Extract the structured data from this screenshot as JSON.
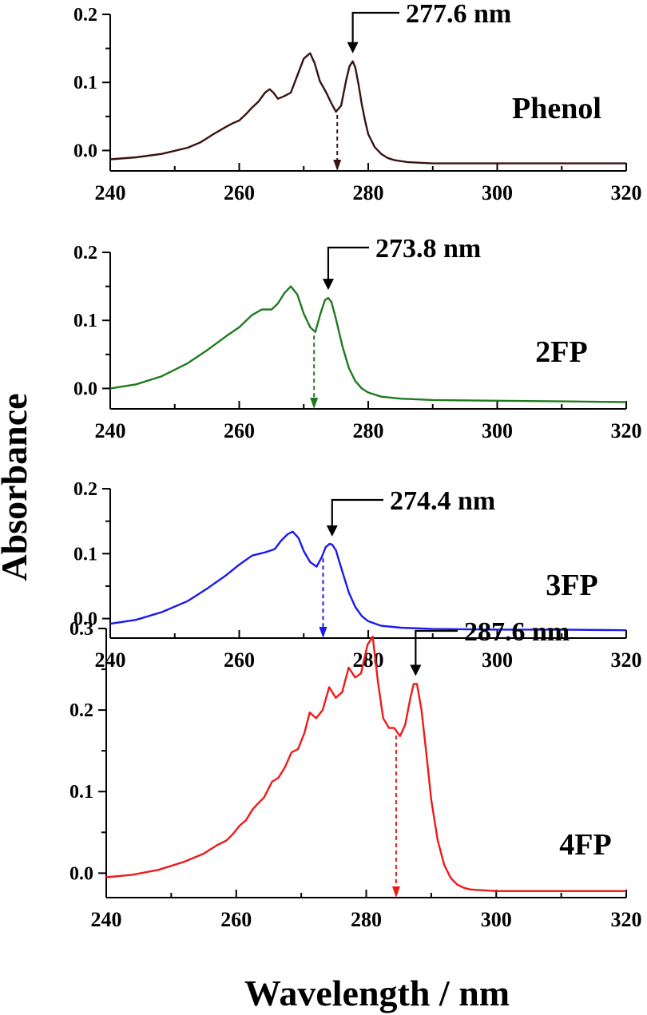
{
  "colors": {
    "phenol": "#3b1212",
    "2fp": "#1f7a1f",
    "3fp": "#1a1aee",
    "4fp": "#ee1a1a",
    "axes": "#000000"
  },
  "axis_titles": {
    "y": "Absorbance",
    "x": "Wavelength / nm"
  },
  "chart_data": [
    {
      "type": "line",
      "name": "Phenol",
      "label": "Phenol",
      "xlim": [
        240,
        320
      ],
      "ylim": [
        -0.03,
        0.2
      ],
      "xticks": [
        240,
        260,
        280,
        300,
        320
      ],
      "xtick_labels": [
        "240",
        "260",
        "280",
        "300",
        "320"
      ],
      "yticks": [
        0.0,
        0.1,
        0.2
      ],
      "ytick_labels": [
        "0.0",
        "0.1",
        "0.2"
      ],
      "grid": false,
      "color": "#3b1212",
      "peak_annotation": {
        "text": "277.6 nm",
        "x": 277.6
      },
      "dashed_marker_x": 275.2,
      "x": [
        240,
        244,
        248,
        252,
        254,
        256,
        258,
        259,
        260,
        261,
        262,
        263,
        264,
        264.7,
        265.3,
        266,
        267,
        268,
        269,
        270,
        271,
        271.7,
        272.5,
        273.5,
        274.3,
        275,
        275.8,
        276.6,
        277.1,
        277.6,
        278,
        278.5,
        279,
        279.5,
        280,
        281,
        282,
        283,
        284,
        286,
        288,
        290,
        300,
        310,
        320
      ],
      "y": [
        -0.013,
        -0.01,
        -0.005,
        0.004,
        0.012,
        0.024,
        0.035,
        0.04,
        0.044,
        0.053,
        0.063,
        0.072,
        0.085,
        0.09,
        0.085,
        0.076,
        0.08,
        0.085,
        0.11,
        0.135,
        0.143,
        0.128,
        0.102,
        0.085,
        0.069,
        0.057,
        0.066,
        0.104,
        0.124,
        0.131,
        0.122,
        0.097,
        0.068,
        0.044,
        0.024,
        0.005,
        -0.005,
        -0.011,
        -0.014,
        -0.017,
        -0.018,
        -0.019,
        -0.019,
        -0.019,
        -0.019
      ]
    },
    {
      "type": "line",
      "name": "2FP",
      "label": "2FP",
      "xlim": [
        240,
        320
      ],
      "ylim": [
        -0.03,
        0.2
      ],
      "xticks": [
        240,
        260,
        280,
        300,
        320
      ],
      "xtick_labels": [
        "240",
        "260",
        "280",
        "300",
        "320"
      ],
      "yticks": [
        0.0,
        0.1,
        0.2
      ],
      "ytick_labels": [
        "0.0",
        "0.1",
        "0.2"
      ],
      "grid": false,
      "color": "#1f7a1f",
      "peak_annotation": {
        "text": "273.8 nm",
        "x": 273.8
      },
      "dashed_marker_x": 271.6,
      "x": [
        240,
        244,
        248,
        252,
        255,
        258,
        260,
        262,
        263.5,
        265,
        266,
        267,
        268,
        269,
        270,
        271,
        271.8,
        272.6,
        273.3,
        273.8,
        274.3,
        275,
        276,
        277,
        278,
        279,
        280,
        282,
        285,
        290,
        300,
        310,
        320
      ],
      "y": [
        0.0,
        0.006,
        0.018,
        0.037,
        0.056,
        0.077,
        0.09,
        0.108,
        0.116,
        0.116,
        0.125,
        0.14,
        0.15,
        0.138,
        0.11,
        0.09,
        0.083,
        0.11,
        0.13,
        0.133,
        0.127,
        0.102,
        0.062,
        0.03,
        0.011,
        0.0,
        -0.006,
        -0.012,
        -0.015,
        -0.017,
        -0.018,
        -0.019,
        -0.02
      ]
    },
    {
      "type": "line",
      "name": "3FP",
      "label": "3FP",
      "xlim": [
        240,
        320
      ],
      "ylim": [
        -0.03,
        0.2
      ],
      "xticks": [
        240,
        260,
        280,
        300,
        320
      ],
      "xtick_labels": [
        "240",
        "260",
        "280",
        "300",
        "320"
      ],
      "yticks": [
        0.0,
        0.1,
        0.2
      ],
      "ytick_labels": [
        "0.0",
        "0.1",
        "0.2"
      ],
      "grid": false,
      "color": "#1a1aee",
      "peak_annotation": {
        "text": "274.4 nm",
        "x": 274.4
      },
      "dashed_marker_x": 273.0,
      "x": [
        240,
        244,
        248,
        252,
        255,
        258,
        260,
        262,
        264,
        265.5,
        266.5,
        267.5,
        268.3,
        269.2,
        270,
        271,
        272,
        272.8,
        273.4,
        274,
        274.4,
        275,
        276,
        277,
        278,
        279,
        280,
        282,
        285,
        290,
        300,
        310,
        320
      ],
      "y": [
        -0.008,
        -0.002,
        0.01,
        0.027,
        0.046,
        0.067,
        0.083,
        0.097,
        0.102,
        0.107,
        0.12,
        0.13,
        0.134,
        0.124,
        0.104,
        0.087,
        0.08,
        0.095,
        0.11,
        0.115,
        0.114,
        0.105,
        0.072,
        0.04,
        0.018,
        0.004,
        -0.004,
        -0.011,
        -0.014,
        -0.016,
        -0.017,
        -0.017,
        -0.018
      ]
    },
    {
      "type": "line",
      "name": "4FP",
      "label": "4FP",
      "xlim": [
        240,
        320
      ],
      "ylim": [
        -0.03,
        0.3
      ],
      "xticks": [
        240,
        260,
        280,
        300,
        320
      ],
      "xtick_labels": [
        "240",
        "260",
        "280",
        "300",
        "320"
      ],
      "yticks": [
        0.0,
        0.1,
        0.2,
        0.3
      ],
      "ytick_labels": [
        "0.0",
        "0.1",
        "0.2",
        "0.3"
      ],
      "grid": false,
      "color": "#ee1a1a",
      "peak_annotation": {
        "text": "287.6 nm",
        "x": 287.6
      },
      "dashed_marker_x": 284.6,
      "x": [
        240,
        244,
        248,
        252,
        255,
        257,
        258.5,
        259.5,
        260.5,
        261.5,
        262.5,
        263.3,
        264.3,
        265.5,
        266.5,
        267.5,
        268.5,
        269.5,
        270.5,
        271.3,
        272.3,
        273.3,
        274.3,
        275.3,
        276.3,
        277.3,
        278.3,
        279.2,
        280.2,
        281,
        281.8,
        282.6,
        283.5,
        284.3,
        285.2,
        286,
        286.8,
        287.3,
        287.8,
        288.5,
        289.2,
        290,
        291,
        292,
        293,
        294,
        295,
        296,
        300,
        310,
        320
      ],
      "y": [
        -0.005,
        -0.002,
        0.004,
        0.014,
        0.024,
        0.034,
        0.04,
        0.048,
        0.058,
        0.065,
        0.078,
        0.085,
        0.093,
        0.112,
        0.117,
        0.13,
        0.148,
        0.152,
        0.172,
        0.197,
        0.19,
        0.2,
        0.228,
        0.215,
        0.222,
        0.252,
        0.24,
        0.245,
        0.28,
        0.29,
        0.235,
        0.19,
        0.178,
        0.178,
        0.168,
        0.182,
        0.215,
        0.232,
        0.232,
        0.2,
        0.15,
        0.09,
        0.04,
        0.01,
        -0.006,
        -0.014,
        -0.018,
        -0.02,
        -0.022,
        -0.022,
        -0.022
      ]
    }
  ]
}
